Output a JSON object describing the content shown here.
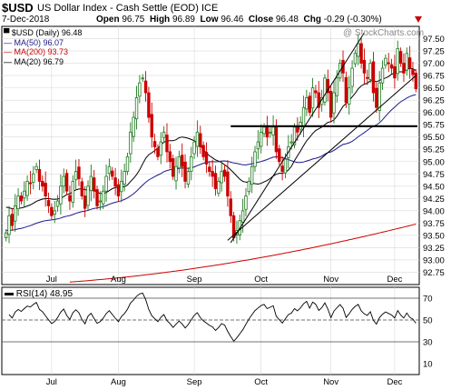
{
  "header": {
    "symbol": "$USD",
    "name": "US Dollar Index - Cash Settle (EOD)",
    "exchange": "ICE",
    "date": "7-Dec-2018",
    "open_label": "Open",
    "open": "96.75",
    "high_label": "High",
    "high": "96.89",
    "low_label": "Low",
    "low": "96.46",
    "close_label": "Close",
    "close": "96.48",
    "chg_label": "Chg",
    "chg": "-0.29 (-0.30%)",
    "watermark": "@ StockCharts.com"
  },
  "legend": [
    {
      "label": "$USD (Daily) 96.48",
      "color": "#000000"
    },
    {
      "label": "MA(50) 96.07",
      "color": "#1a1a8c"
    },
    {
      "label": "MA(200) 93.73",
      "color": "#cc0000"
    },
    {
      "label": "MA(20) 96.79",
      "color": "#000000"
    }
  ],
  "rsi_label": "RSI(14) 48.95",
  "colors": {
    "up": "#1f7a1f",
    "down": "#cc0000",
    "ma50": "#1a1a8c",
    "ma200": "#cc0000",
    "ma20": "#000000",
    "grid": "#d9d9d9"
  },
  "chart_data": [
    {
      "type": "candlestick",
      "title": "$USD US Dollar Index - Cash Settle (EOD) ICE",
      "x_tick_labels": [
        "Jul",
        "Aug",
        "Sep",
        "Oct",
        "Nov",
        "Dec"
      ],
      "y_ticks": [
        92.75,
        93.0,
        93.25,
        93.5,
        93.75,
        94.0,
        94.25,
        94.5,
        94.75,
        95.0,
        95.25,
        95.5,
        95.75,
        96.0,
        96.25,
        96.5,
        96.75,
        97.0,
        97.25,
        97.5
      ],
      "ylim": [
        92.5,
        97.75
      ],
      "grid": true,
      "closes": [
        93.55,
        93.9,
        93.7,
        94.1,
        94.3,
        94.2,
        94.4,
        94.6,
        94.55,
        94.75,
        94.9,
        94.6,
        94.5,
        94.3,
        94.1,
        93.9,
        94.0,
        94.2,
        94.5,
        94.7,
        94.4,
        94.2,
        94.6,
        94.8,
        94.65,
        94.3,
        94.05,
        94.5,
        94.7,
        94.4,
        94.1,
        94.2,
        94.4,
        94.7,
        94.9,
        94.7,
        94.5,
        94.3,
        94.6,
        94.8,
        95.1,
        95.6,
        95.9,
        96.3,
        96.6,
        96.7,
        96.4,
        95.9,
        95.5,
        95.3,
        95.1,
        95.4,
        95.6,
        95.2,
        95.0,
        94.7,
        94.9,
        95.1,
        94.9,
        94.6,
        94.8,
        95.1,
        95.4,
        95.6,
        95.3,
        95.1,
        94.95,
        94.8,
        94.7,
        94.45,
        94.6,
        94.8,
        94.7,
        94.3,
        93.9,
        93.45,
        93.6,
        93.8,
        94.0,
        94.3,
        94.6,
        94.9,
        95.2,
        95.4,
        95.6,
        95.7,
        95.5,
        95.6,
        95.7,
        95.2,
        95.0,
        94.8,
        95.05,
        95.3,
        95.4,
        95.7,
        95.6,
        95.8,
        96.1,
        96.3,
        96.0,
        96.5,
        96.4,
        96.1,
        96.3,
        96.7,
        96.4,
        95.9,
        96.4,
        96.7,
        97.0,
        96.8,
        96.2,
        96.5,
        96.9,
        97.2,
        97.4,
        97.0,
        96.8,
        96.7,
        97.0,
        96.4,
        96.1,
        96.6,
        96.9,
        97.1,
        97.0,
        96.9,
        96.7,
        97.3,
        97.0,
        96.8,
        97.2,
        96.9,
        96.77,
        96.48
      ],
      "last_close": 96.48,
      "moving_averages": [
        {
          "name": "MA(50)",
          "last": 96.07
        },
        {
          "name": "MA(200)",
          "last": 93.73
        },
        {
          "name": "MA(20)",
          "last": 96.79
        }
      ],
      "horizontal_line": 95.72,
      "annotations": [
        "rising channel from mid-Sep low to Dec",
        "horizontal support at ~95.72"
      ]
    },
    {
      "type": "line",
      "title": "RSI(14) 48.95",
      "x_tick_labels": [
        "Jul",
        "Aug",
        "Sep",
        "Oct",
        "Nov",
        "Dec"
      ],
      "y_ticks": [
        70,
        50,
        30,
        10
      ],
      "ylim": [
        0,
        80
      ],
      "reference_lines": [
        70,
        50,
        30
      ],
      "last": 48.95
    }
  ]
}
